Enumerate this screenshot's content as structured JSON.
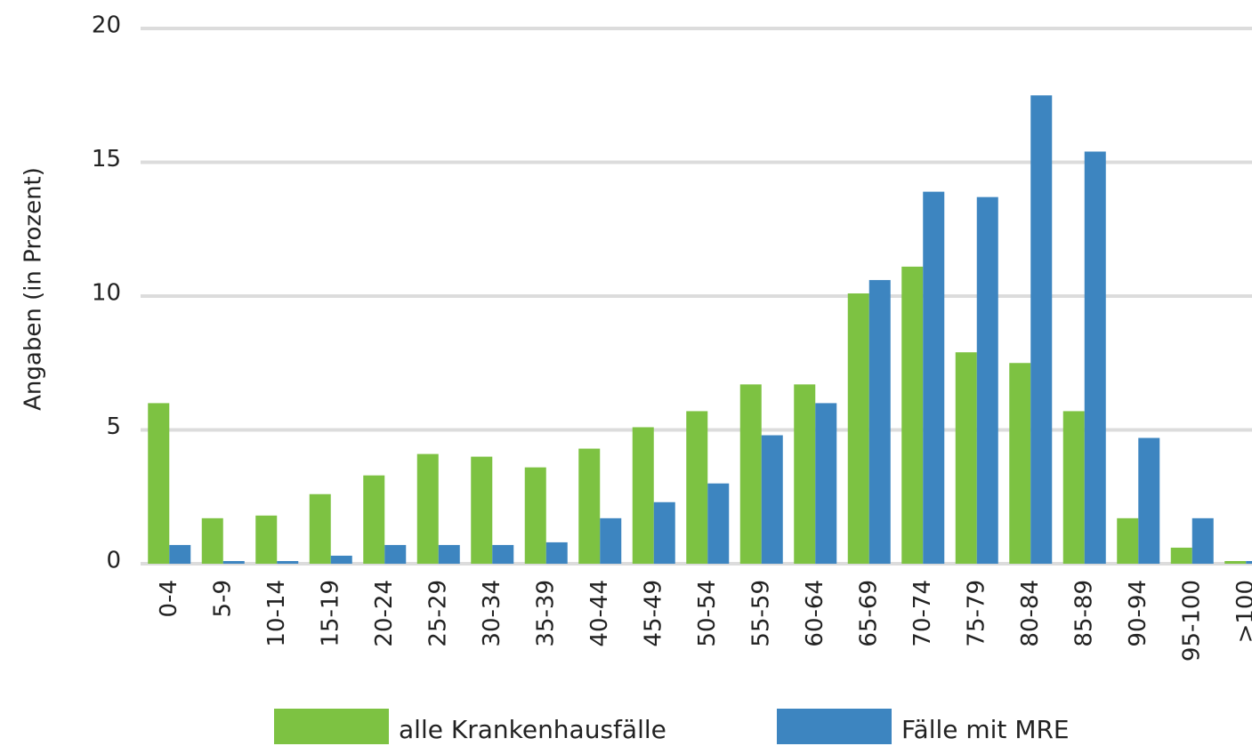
{
  "chart_data": {
    "type": "bar",
    "y_label": "Angaben (in Prozent)",
    "categories": [
      "0-4",
      "5-9",
      "10-14",
      "15-19",
      "20-24",
      "25-29",
      "30-34",
      "35-39",
      "40-44",
      "45-49",
      "50-54",
      "55-59",
      "60-64",
      "65-69",
      "70-74",
      "75-79",
      "80-84",
      "85-89",
      "90-94",
      "95-100",
      ">100"
    ],
    "series": [
      {
        "name": "alle Krankenhausfälle",
        "color": "#7dc242",
        "values": [
          6.0,
          1.7,
          1.8,
          2.6,
          3.3,
          4.1,
          4.0,
          3.6,
          4.3,
          5.1,
          5.7,
          6.7,
          6.7,
          10.1,
          11.1,
          7.9,
          7.5,
          5.7,
          1.7,
          0.6,
          0.1
        ]
      },
      {
        "name": "Fälle mit MRE",
        "color": "#3d85c0",
        "values": [
          0.7,
          0.1,
          0.1,
          0.3,
          0.7,
          0.7,
          0.7,
          0.8,
          1.7,
          2.3,
          3.0,
          4.8,
          6.0,
          10.6,
          13.9,
          13.7,
          17.5,
          15.4,
          4.7,
          1.7,
          0.1
        ]
      }
    ],
    "ylim": [
      0,
      20
    ],
    "yticks": [
      0,
      5,
      10,
      15,
      20
    ],
    "grid": true,
    "legend": "bottom"
  }
}
